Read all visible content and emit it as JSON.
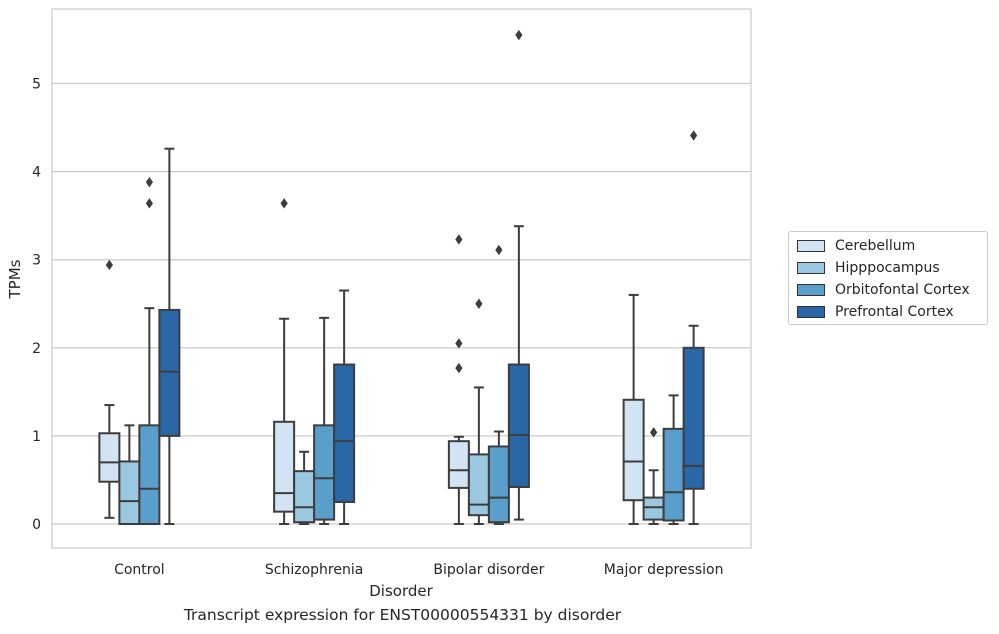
{
  "chart_data": {
    "type": "box",
    "title": "Transcript expression for ENST00000554331 by disorder",
    "xlabel": "Disorder",
    "ylabel": "TPMs",
    "ylim": [
      -0.27,
      5.85
    ],
    "yticks": [
      0,
      1,
      2,
      3,
      4,
      5
    ],
    "grid": true,
    "legend_position": "right",
    "categories": [
      "Control",
      "Schizophrenia",
      "Bipolar disorder",
      "Major depression"
    ],
    "series": [
      {
        "name": "Cerebellum",
        "color": "#d2e3f3",
        "boxes": [
          {
            "whislo": 0.07,
            "q1": 0.48,
            "med": 0.7,
            "q3": 1.03,
            "whishi": 1.35,
            "fliers": [
              2.94
            ]
          },
          {
            "whislo": 0.0,
            "q1": 0.14,
            "med": 0.35,
            "q3": 1.16,
            "whishi": 2.33,
            "fliers": [
              3.64
            ]
          },
          {
            "whislo": 0.0,
            "q1": 0.41,
            "med": 0.61,
            "q3": 0.94,
            "whishi": 0.99,
            "fliers": [
              1.77,
              2.05,
              3.23
            ]
          },
          {
            "whislo": 0.0,
            "q1": 0.27,
            "med": 0.71,
            "q3": 1.41,
            "whishi": 2.6,
            "fliers": []
          }
        ]
      },
      {
        "name": "Hipppocampus",
        "color": "#9ac8e0",
        "boxes": [
          {
            "whislo": 0.0,
            "q1": 0.0,
            "med": 0.26,
            "q3": 0.71,
            "whishi": 1.12,
            "fliers": []
          },
          {
            "whislo": 0.0,
            "q1": 0.02,
            "med": 0.19,
            "q3": 0.6,
            "whishi": 0.82,
            "fliers": []
          },
          {
            "whislo": 0.0,
            "q1": 0.1,
            "med": 0.22,
            "q3": 0.79,
            "whishi": 1.55,
            "fliers": [
              2.5
            ]
          },
          {
            "whislo": 0.0,
            "q1": 0.05,
            "med": 0.19,
            "q3": 0.3,
            "whishi": 0.61,
            "fliers": [
              1.04
            ]
          }
        ]
      },
      {
        "name": "Orbitofontal Cortex",
        "color": "#5a9fcc",
        "boxes": [
          {
            "whislo": 0.0,
            "q1": 0.0,
            "med": 0.4,
            "q3": 1.12,
            "whishi": 2.45,
            "fliers": [
              3.64,
              3.88
            ]
          },
          {
            "whislo": 0.0,
            "q1": 0.05,
            "med": 0.52,
            "q3": 1.12,
            "whishi": 2.34,
            "fliers": []
          },
          {
            "whislo": 0.0,
            "q1": 0.02,
            "med": 0.3,
            "q3": 0.88,
            "whishi": 1.05,
            "fliers": [
              3.11
            ]
          },
          {
            "whislo": 0.0,
            "q1": 0.04,
            "med": 0.36,
            "q3": 1.08,
            "whishi": 1.46,
            "fliers": []
          }
        ]
      },
      {
        "name": "Prefrontal Cortex",
        "color": "#2967a7",
        "boxes": [
          {
            "whislo": 0.0,
            "q1": 1.0,
            "med": 1.73,
            "q3": 2.43,
            "whishi": 4.26,
            "fliers": []
          },
          {
            "whislo": 0.0,
            "q1": 0.25,
            "med": 0.94,
            "q3": 1.81,
            "whishi": 2.65,
            "fliers": []
          },
          {
            "whislo": 0.05,
            "q1": 0.42,
            "med": 1.01,
            "q3": 1.81,
            "whishi": 3.38,
            "fliers": [
              5.55
            ]
          },
          {
            "whislo": 0.0,
            "q1": 0.4,
            "med": 0.66,
            "q3": 2.0,
            "whishi": 2.25,
            "fliers": [
              4.41
            ]
          }
        ]
      }
    ]
  }
}
